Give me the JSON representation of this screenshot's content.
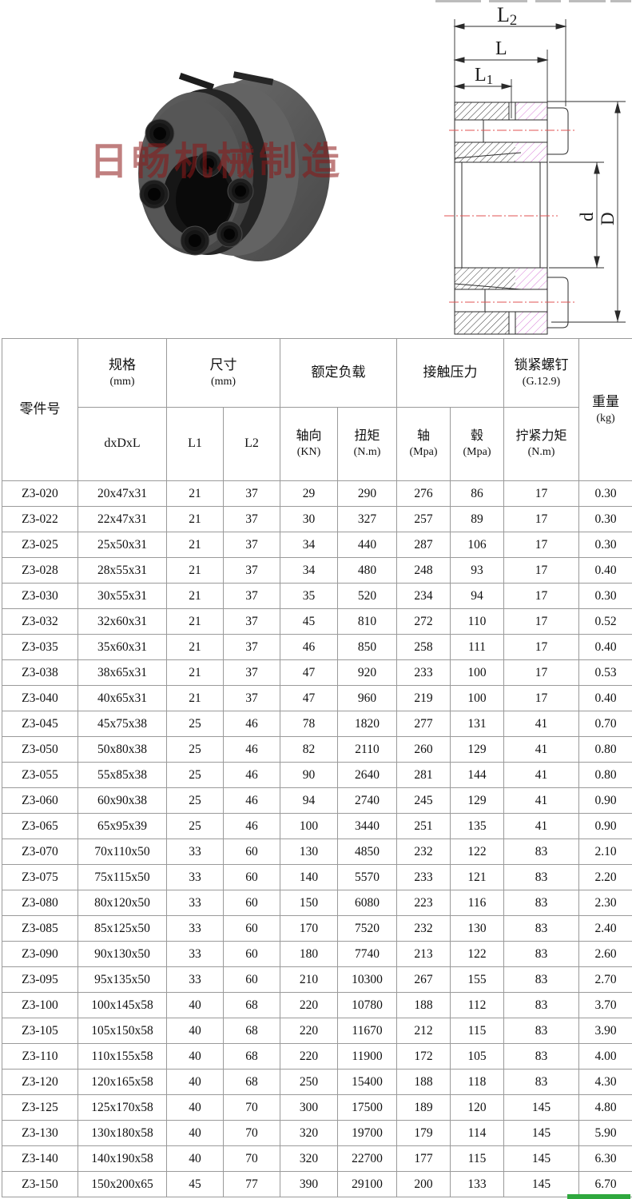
{
  "watermark": "日畅机械制造",
  "drawing": {
    "dim_labels": {
      "l2": "L2",
      "l": "L",
      "l1": "L1",
      "d": "d",
      "big_d": "D"
    }
  },
  "colors": {
    "watermark_red": "#8d1717",
    "centerline_red": "#e05353",
    "hatch_magenta": "#d77bd7",
    "green_strip": "#2fa83e",
    "table_border": "#9a9a9a"
  },
  "table": {
    "col_keys": [
      "part_no",
      "spec",
      "l1",
      "l2",
      "axial",
      "torque",
      "shaft",
      "hub",
      "tightening",
      "weight"
    ],
    "header": {
      "part_no": "零件号",
      "spec_label": "规格",
      "spec_unit": "(mm)",
      "spec_sub": "dxDxL",
      "size_label": "尺寸",
      "size_unit": "(mm)",
      "size_sub1": "L1",
      "size_sub2": "L2",
      "load_label": "额定负载",
      "load_sub1": "轴向",
      "load_sub1_unit": "(KN)",
      "load_sub2": "扭矩",
      "load_sub2_unit": "(N.m)",
      "contact_label": "接触压力",
      "contact_sub1": "轴",
      "contact_sub1_unit": "(Mpa)",
      "contact_sub2": "毂",
      "contact_sub2_unit": "(Mpa)",
      "screw_label": "锁紧螺钉",
      "screw_unit": "(G.12.9)",
      "screw_sub": "拧紧力矩",
      "screw_sub_unit": "(N.m)",
      "weight_label": "重量",
      "weight_unit": "(kg)"
    },
    "rows": [
      [
        "Z3-020",
        "20x47x31",
        "21",
        "37",
        "29",
        "290",
        "276",
        "86",
        "17",
        "0.30"
      ],
      [
        "Z3-022",
        "22x47x31",
        "21",
        "37",
        "30",
        "327",
        "257",
        "89",
        "17",
        "0.30"
      ],
      [
        "Z3-025",
        "25x50x31",
        "21",
        "37",
        "34",
        "440",
        "287",
        "106",
        "17",
        "0.30"
      ],
      [
        "Z3-028",
        "28x55x31",
        "21",
        "37",
        "34",
        "480",
        "248",
        "93",
        "17",
        "0.40"
      ],
      [
        "Z3-030",
        "30x55x31",
        "21",
        "37",
        "35",
        "520",
        "234",
        "94",
        "17",
        "0.30"
      ],
      [
        "Z3-032",
        "32x60x31",
        "21",
        "37",
        "45",
        "810",
        "272",
        "110",
        "17",
        "0.52"
      ],
      [
        "Z3-035",
        "35x60x31",
        "21",
        "37",
        "46",
        "850",
        "258",
        "111",
        "17",
        "0.40"
      ],
      [
        "Z3-038",
        "38x65x31",
        "21",
        "37",
        "47",
        "920",
        "233",
        "100",
        "17",
        "0.53"
      ],
      [
        "Z3-040",
        "40x65x31",
        "21",
        "37",
        "47",
        "960",
        "219",
        "100",
        "17",
        "0.40"
      ],
      [
        "Z3-045",
        "45x75x38",
        "25",
        "46",
        "78",
        "1820",
        "277",
        "131",
        "41",
        "0.70"
      ],
      [
        "Z3-050",
        "50x80x38",
        "25",
        "46",
        "82",
        "2110",
        "260",
        "129",
        "41",
        "0.80"
      ],
      [
        "Z3-055",
        "55x85x38",
        "25",
        "46",
        "90",
        "2640",
        "281",
        "144",
        "41",
        "0.80"
      ],
      [
        "Z3-060",
        "60x90x38",
        "25",
        "46",
        "94",
        "2740",
        "245",
        "129",
        "41",
        "0.90"
      ],
      [
        "Z3-065",
        "65x95x39",
        "25",
        "46",
        "100",
        "3440",
        "251",
        "135",
        "41",
        "0.90"
      ],
      [
        "Z3-070",
        "70x110x50",
        "33",
        "60",
        "130",
        "4850",
        "232",
        "122",
        "83",
        "2.10"
      ],
      [
        "Z3-075",
        "75x115x50",
        "33",
        "60",
        "140",
        "5570",
        "233",
        "121",
        "83",
        "2.20"
      ],
      [
        "Z3-080",
        "80x120x50",
        "33",
        "60",
        "150",
        "6080",
        "223",
        "116",
        "83",
        "2.30"
      ],
      [
        "Z3-085",
        "85x125x50",
        "33",
        "60",
        "170",
        "7520",
        "232",
        "130",
        "83",
        "2.40"
      ],
      [
        "Z3-090",
        "90x130x50",
        "33",
        "60",
        "180",
        "7740",
        "213",
        "122",
        "83",
        "2.60"
      ],
      [
        "Z3-095",
        "95x135x50",
        "33",
        "60",
        "210",
        "10300",
        "267",
        "155",
        "83",
        "2.70"
      ],
      [
        "Z3-100",
        "100x145x58",
        "40",
        "68",
        "220",
        "10780",
        "188",
        "112",
        "83",
        "3.70"
      ],
      [
        "Z3-105",
        "105x150x58",
        "40",
        "68",
        "220",
        "11670",
        "212",
        "115",
        "83",
        "3.90"
      ],
      [
        "Z3-110",
        "110x155x58",
        "40",
        "68",
        "220",
        "11900",
        "172",
        "105",
        "83",
        "4.00"
      ],
      [
        "Z3-120",
        "120x165x58",
        "40",
        "68",
        "250",
        "15400",
        "188",
        "118",
        "83",
        "4.30"
      ],
      [
        "Z3-125",
        "125x170x58",
        "40",
        "70",
        "300",
        "17500",
        "189",
        "120",
        "145",
        "4.80"
      ],
      [
        "Z3-130",
        "130x180x58",
        "40",
        "70",
        "320",
        "19700",
        "179",
        "114",
        "145",
        "5.90"
      ],
      [
        "Z3-140",
        "140x190x58",
        "40",
        "70",
        "320",
        "22700",
        "177",
        "115",
        "145",
        "6.30"
      ],
      [
        "Z3-150",
        "150x200x65",
        "45",
        "77",
        "390",
        "29100",
        "200",
        "133",
        "145",
        "6.70"
      ]
    ]
  }
}
